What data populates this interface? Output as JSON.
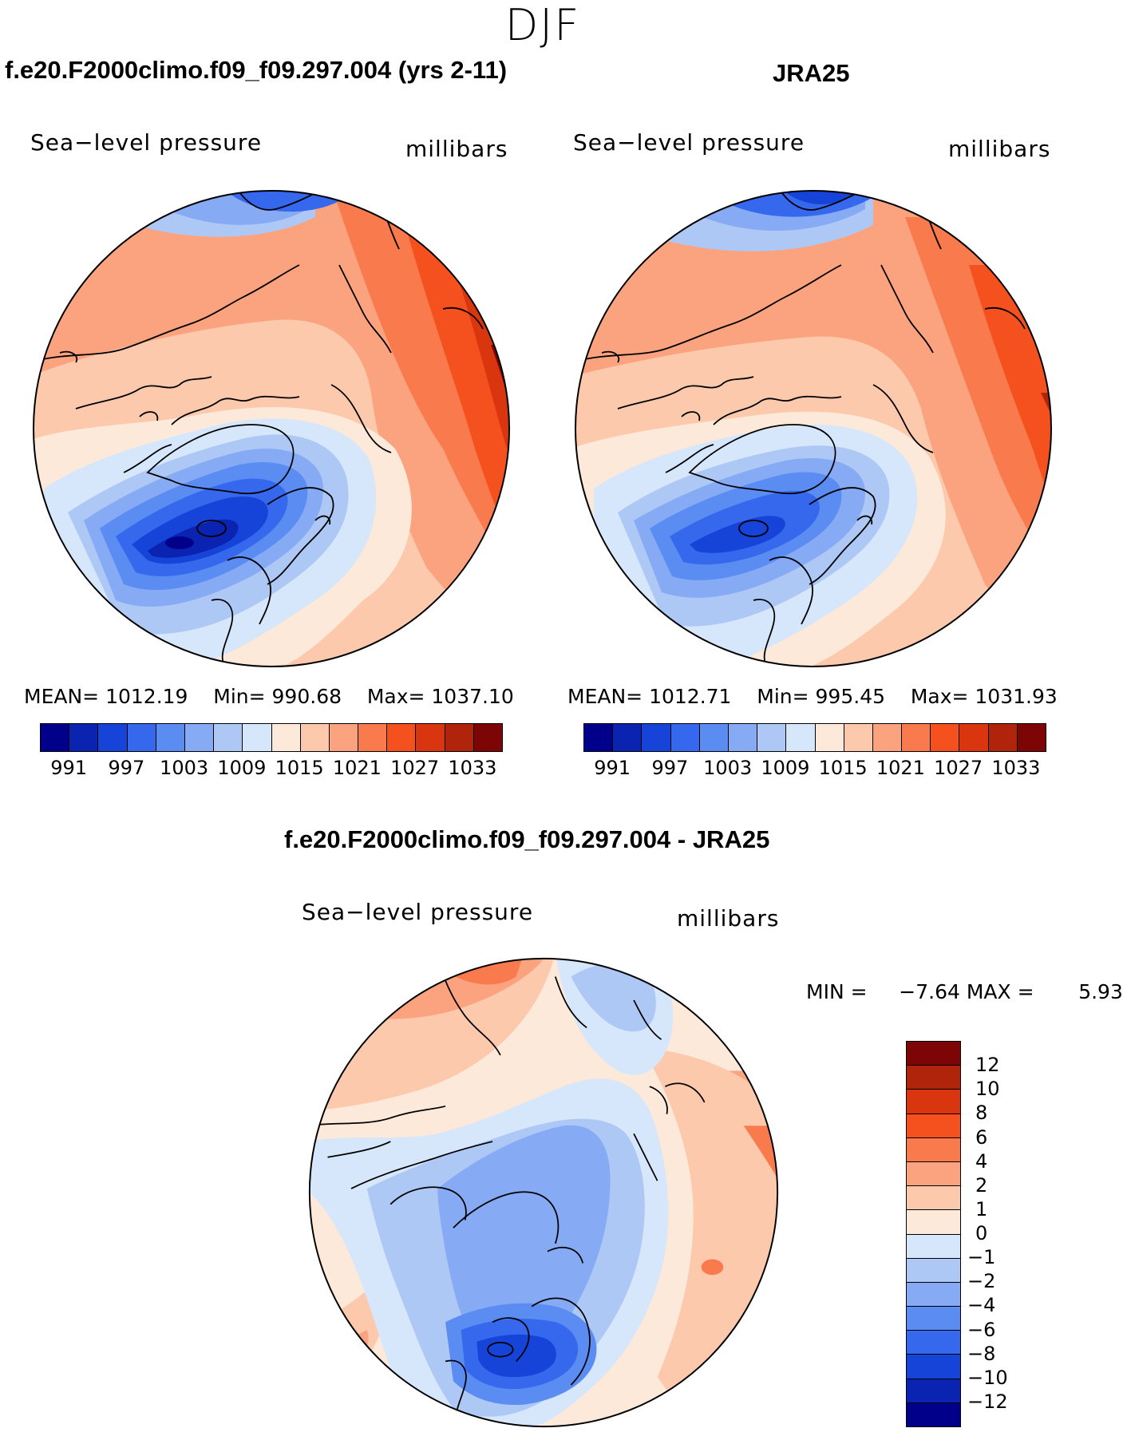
{
  "figure": {
    "season": "DJF"
  },
  "panels": [
    {
      "title": "f.e20.F2000climo.f09_f09.297.004 (yrs 2-11)",
      "variable": "Sea−level pressure",
      "units": "millibars",
      "stats": {
        "mean_label": "MEAN=",
        "mean": "1012.19",
        "min_label": "Min=",
        "min": "990.68",
        "max_label": "Max=",
        "max": "1037.10"
      }
    },
    {
      "title": "JRA25",
      "variable": "Sea−level pressure",
      "units": "millibars",
      "stats": {
        "mean_label": "MEAN=",
        "mean": "1012.71",
        "min_label": "Min=",
        "min": "995.45",
        "max_label": "Max=",
        "max": "1031.93"
      }
    },
    {
      "title": "f.e20.F2000climo.f09_f09.297.004 - JRA25",
      "variable": "Sea−level pressure",
      "units": "millibars",
      "stats": {
        "min_label": "MIN =",
        "min": "−7.64",
        "max_label": "MAX =",
        "max": "5.93"
      }
    }
  ],
  "colorbars": {
    "field": {
      "colors": [
        "#00008b",
        "#0a23b0",
        "#1744d8",
        "#3668ee",
        "#5b8cf2",
        "#86abf4",
        "#aec8f6",
        "#d6e6fb",
        "#fde9d9",
        "#fcc9ad",
        "#fba37f",
        "#f97a4c",
        "#f4511e",
        "#d93610",
        "#b0240b",
        "#7d0505"
      ],
      "tick_labels": [
        "991",
        "997",
        "1003",
        "1009",
        "1015",
        "1021",
        "1027",
        "1033"
      ]
    },
    "difference": {
      "colors": [
        "#00008b",
        "#0a23b0",
        "#1744d8",
        "#3668ee",
        "#5b8cf2",
        "#86abf4",
        "#aec8f6",
        "#d6e6fb",
        "#fde9d9",
        "#fcc9ad",
        "#fba37f",
        "#f97a4c",
        "#f4511e",
        "#d93610",
        "#b0240b",
        "#7d0505"
      ],
      "tick_labels": [
        "12",
        "10",
        "8",
        "6",
        "4",
        "2",
        "1",
        "0",
        "−1",
        "−2",
        "−4",
        "−6",
        "−8",
        "−10",
        "−12"
      ]
    }
  }
}
